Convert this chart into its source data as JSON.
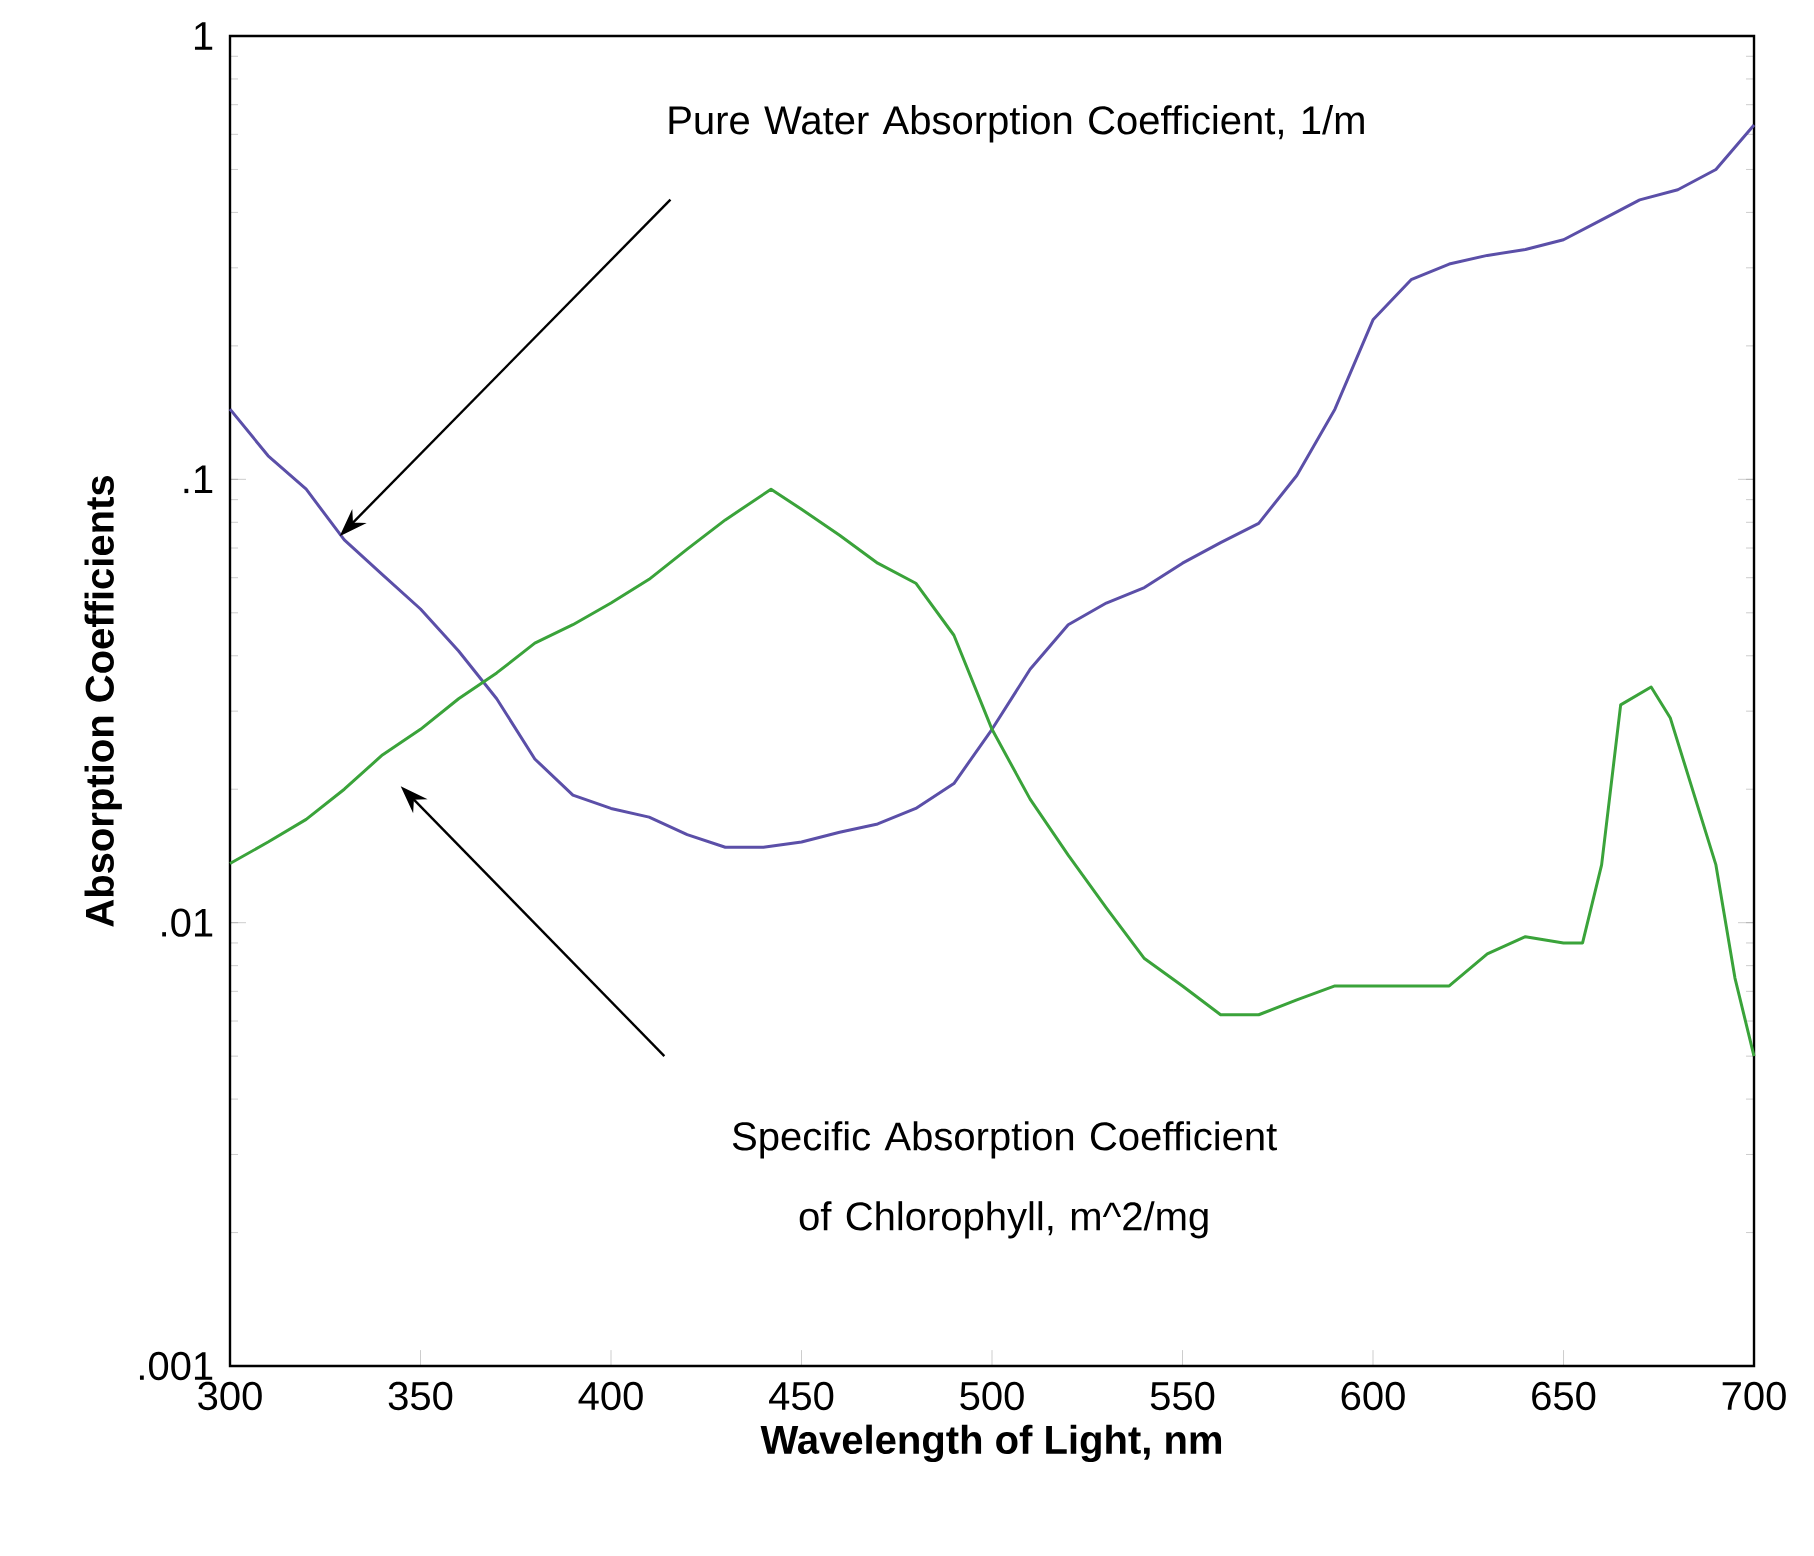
{
  "chart_data": {
    "type": "line",
    "xlabel": "Wavelength of Light, nm",
    "ylabel": "Absorption Coefficients",
    "log": "y",
    "xlim": [
      300,
      700
    ],
    "ylim": [
      0.001,
      1
    ],
    "xticks": [
      300,
      350,
      400,
      450,
      500,
      550,
      600,
      650,
      700
    ],
    "yticks": [
      {
        "value": 0.001,
        "label": ".001"
      },
      {
        "value": 0.01,
        "label": ".01"
      },
      {
        "value": 0.1,
        "label": ".1"
      },
      {
        "value": 1,
        "label": "1"
      }
    ],
    "marker": "none",
    "line_style": "solid",
    "x": [
      300,
      310,
      320,
      330,
      340,
      350,
      360,
      370,
      380,
      390,
      400,
      410,
      420,
      430,
      440,
      450,
      460,
      470,
      480,
      490,
      500,
      510,
      520,
      530,
      540,
      550,
      560,
      570,
      580,
      590,
      600,
      610,
      620,
      630,
      640,
      650,
      660,
      670,
      680,
      690,
      700
    ],
    "series": [
      {
        "color": "#5b4fa8",
        "values": [
          0.144,
          0.113,
          0.095,
          0.073,
          0.061,
          0.051,
          0.041,
          0.032,
          0.0234,
          0.0194,
          0.0181,
          0.0173,
          0.0158,
          0.0148,
          0.0148,
          0.0152,
          0.016,
          0.0167,
          0.0181,
          0.0206,
          0.0273,
          0.0373,
          0.047,
          0.0526,
          0.057,
          0.0647,
          0.072,
          0.0796,
          0.102,
          0.144,
          0.229,
          0.282,
          0.306,
          0.32,
          0.33,
          0.347,
          0.385,
          0.427,
          0.45,
          0.5,
          0.63
        ]
      },
      {
        "color": "#3aa33a",
        "x": [
          300,
          310,
          320,
          330,
          340,
          350,
          360,
          370,
          380,
          390,
          400,
          410,
          420,
          430,
          442,
          450,
          460,
          470,
          480,
          490,
          500,
          510,
          520,
          530,
          540,
          550,
          560,
          570,
          580,
          590,
          600,
          610,
          620,
          630,
          640,
          650,
          655,
          660,
          665,
          673,
          678,
          690,
          695,
          700
        ],
        "values": [
          0.0136,
          0.0152,
          0.0171,
          0.02,
          0.0239,
          0.0273,
          0.032,
          0.0366,
          0.0427,
          0.047,
          0.0526,
          0.0595,
          0.0696,
          0.081,
          0.095,
          0.0856,
          0.0748,
          0.0647,
          0.0583,
          0.0445,
          0.0273,
          0.019,
          0.0142,
          0.0108,
          0.0083,
          0.0072,
          0.0062,
          0.0062,
          0.0067,
          0.0072,
          0.0072,
          0.0072,
          0.0072,
          0.0085,
          0.0093,
          0.009,
          0.009,
          0.0135,
          0.031,
          0.034,
          0.029,
          0.0135,
          0.0075,
          0.005
        ]
      }
    ],
    "annotations": [
      "Pure Water Absorption Coefficient, 1/m",
      "Specific Absorption Coefficient of Chlorophyll, m^2/mg"
    ]
  }
}
